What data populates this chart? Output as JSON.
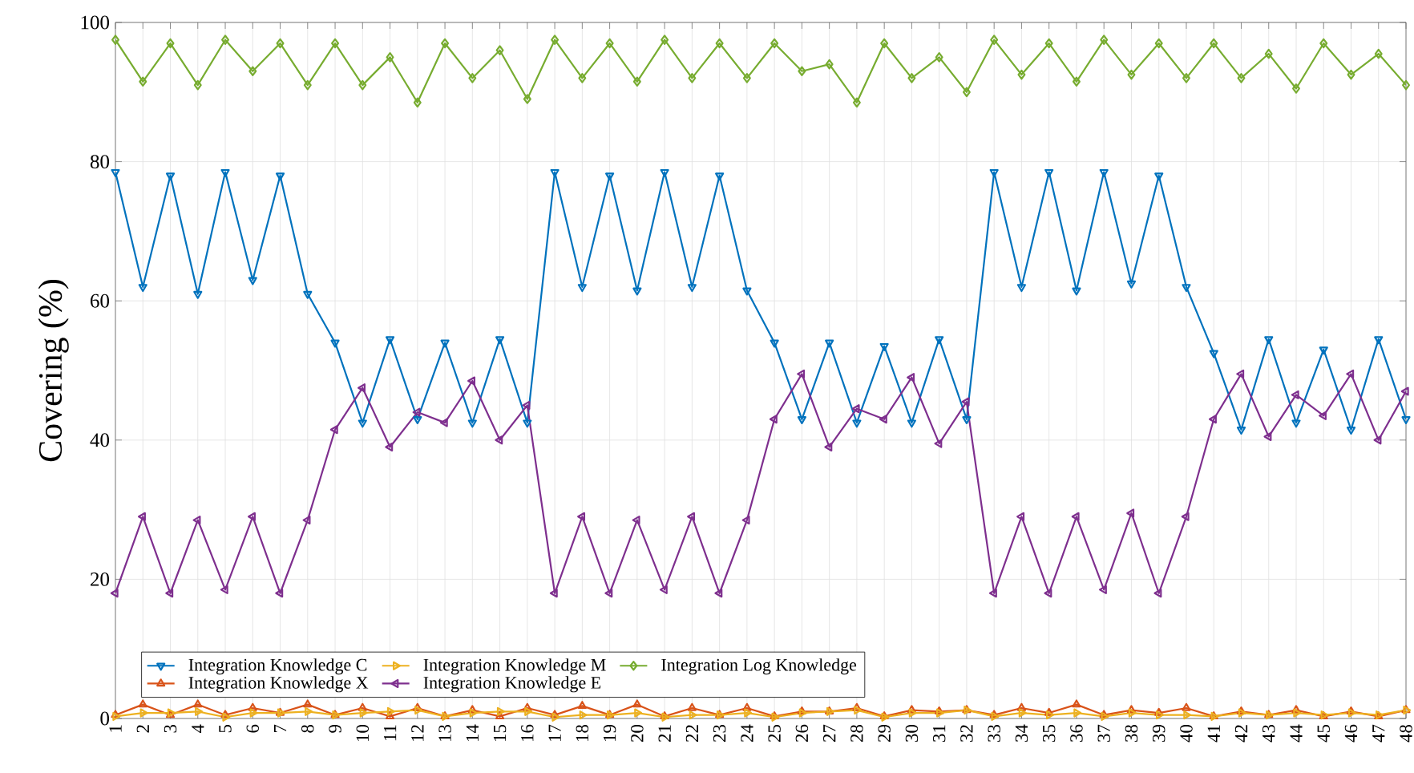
{
  "chart_data": {
    "type": "line",
    "ylabel": "Covering (%)",
    "categories": [
      "1",
      "2",
      "3",
      "4",
      "5",
      "6",
      "7",
      "8",
      "9",
      "10",
      "11",
      "12",
      "13",
      "14",
      "15",
      "16",
      "17",
      "18",
      "19",
      "20",
      "21",
      "22",
      "23",
      "24",
      "25",
      "26",
      "27",
      "28",
      "29",
      "30",
      "31",
      "32",
      "33",
      "34",
      "35",
      "36",
      "37",
      "38",
      "39",
      "40",
      "41",
      "42",
      "43",
      "44",
      "45",
      "46",
      "47",
      "48"
    ],
    "ylim": [
      0,
      100
    ],
    "yticks": [
      0,
      20,
      40,
      60,
      80,
      100
    ],
    "grid": true,
    "legend": "bottom left",
    "series": [
      {
        "name": "Integration Knowledge C",
        "color": "#0072bd",
        "marker": "triangle",
        "values": [
          78.5,
          62,
          78,
          61,
          78.5,
          63,
          78,
          61,
          54,
          42.5,
          54.5,
          43,
          54,
          42.5,
          54.5,
          42.5,
          78.5,
          62,
          78,
          61.5,
          78.5,
          62,
          78,
          61.5,
          54,
          43,
          54,
          42.5,
          53.5,
          42.5,
          54.5,
          43,
          78.5,
          62,
          78.5,
          61.5,
          78.5,
          62.5,
          78,
          62,
          52.5,
          41.5,
          54.5,
          42.5,
          53,
          41.5,
          54.5,
          43
        ]
      },
      {
        "name": "Integration Knowledge X",
        "color": "#d95319",
        "marker": "triangle",
        "values": [
          0.5,
          2,
          0.5,
          2,
          0.5,
          1.5,
          0.8,
          2,
          0.5,
          1.5,
          0.3,
          1.5,
          0.3,
          1.2,
          0.3,
          1.5,
          0.5,
          1.8,
          0.5,
          2,
          0.3,
          1.5,
          0.5,
          1.5,
          0.3,
          1,
          1,
          1.5,
          0.3,
          1.2,
          1,
          1.2,
          0.5,
          1.5,
          0.8,
          2,
          0.5,
          1.2,
          0.8,
          1.5,
          0.3,
          1,
          0.5,
          1.2,
          0.3,
          1,
          0.3,
          1.2
        ]
      },
      {
        "name": "Integration Knowledge M",
        "color": "#edb120",
        "marker": "triangle",
        "values": [
          0.3,
          0.8,
          0.8,
          1,
          0.2,
          0.8,
          0.8,
          1,
          0.5,
          0.8,
          1,
          1.2,
          0.3,
          0.8,
          1,
          1,
          0.2,
          0.5,
          0.5,
          0.8,
          0.2,
          0.5,
          0.5,
          0.8,
          0.2,
          0.8,
          1,
          1.2,
          0.2,
          0.8,
          0.8,
          1.2,
          0.3,
          0.8,
          0.5,
          0.8,
          0.3,
          0.8,
          0.5,
          0.5,
          0.3,
          0.8,
          0.5,
          0.8,
          0.5,
          0.8,
          0.5,
          1.2
        ]
      },
      {
        "name": "Integration Knowledge E",
        "color": "#7e2f8e",
        "marker": "triangle",
        "values": [
          18,
          29,
          18,
          28.5,
          18.5,
          29,
          18,
          28.5,
          41.5,
          47.5,
          39,
          44,
          42.5,
          48.5,
          40,
          45,
          18,
          29,
          18,
          28.5,
          18.5,
          29,
          18,
          28.5,
          43,
          49.5,
          39,
          44.5,
          43,
          49,
          39.5,
          45.5,
          18,
          29,
          18,
          29,
          18.5,
          29.5,
          18,
          29,
          43,
          49.5,
          40.5,
          46.5,
          43.5,
          49.5,
          40,
          47
        ]
      },
      {
        "name": "Integration Log Knowledge",
        "color": "#77ac30",
        "marker": "diamond",
        "values": [
          97.5,
          91.5,
          97,
          91,
          97.5,
          93,
          97,
          91,
          97,
          91,
          95,
          88.5,
          97,
          92,
          96,
          89,
          97.5,
          92,
          97,
          91.5,
          97.5,
          92,
          97,
          92,
          97,
          93,
          94,
          88.5,
          97,
          92,
          95,
          90,
          97.5,
          92.5,
          97,
          91.5,
          97.5,
          92.5,
          97,
          92,
          97,
          92,
          95.5,
          90.5,
          97,
          92.5,
          95.5,
          91
        ]
      }
    ]
  }
}
